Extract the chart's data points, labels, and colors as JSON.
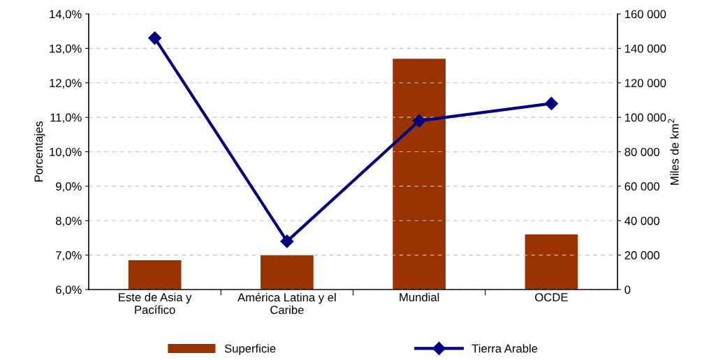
{
  "chart_data": {
    "type": "bar",
    "categories": [
      "Este de Asia y\nPacífico",
      "América Latina y el\nCaribe",
      "Mundial",
      "OCDE"
    ],
    "series": [
      {
        "name": "Superficie",
        "color": "#993300",
        "axis": "y2",
        "values": [
          17000,
          20000,
          134000,
          32000
        ]
      },
      {
        "name": "Tierra Arable",
        "type": "line",
        "color": "#000080",
        "axis": "y",
        "marker": "diamond",
        "values": [
          13.3,
          7.4,
          10.9,
          11.4
        ]
      }
    ],
    "ylabel": "Porcentajes",
    "y2label": "Miles de km$^{2}$",
    "ylim": [
      6,
      14
    ],
    "yticks": [
      {
        "value": 6,
        "label": "6,0%"
      },
      {
        "value": 7,
        "label": "7,0%"
      },
      {
        "value": 8,
        "label": "8,0%"
      },
      {
        "value": 9,
        "label": "9,0%"
      },
      {
        "value": 10,
        "label": "10,0%"
      },
      {
        "value": 11,
        "label": "11,0%"
      },
      {
        "value": 12,
        "label": "12,0%"
      },
      {
        "value": 13,
        "label": "13,0%"
      },
      {
        "value": 14,
        "label": "14,0%"
      }
    ],
    "y2lim": [
      0,
      160000
    ],
    "y2ticks": [
      0,
      {
        "value": 20000,
        "label": "20 000"
      },
      {
        "value": 40000,
        "label": "40 000"
      },
      {
        "value": 60000,
        "label": "60 000"
      },
      {
        "value": 80000,
        "label": "80 000"
      },
      {
        "value": 100000,
        "label": "100 000"
      },
      {
        "value": 120000,
        "label": "120 000"
      },
      {
        "value": 140000,
        "label": "140 000"
      },
      {
        "value": 160000,
        "label": "160 000"
      }
    ],
    "grid": "y",
    "legend": "bottom"
  }
}
